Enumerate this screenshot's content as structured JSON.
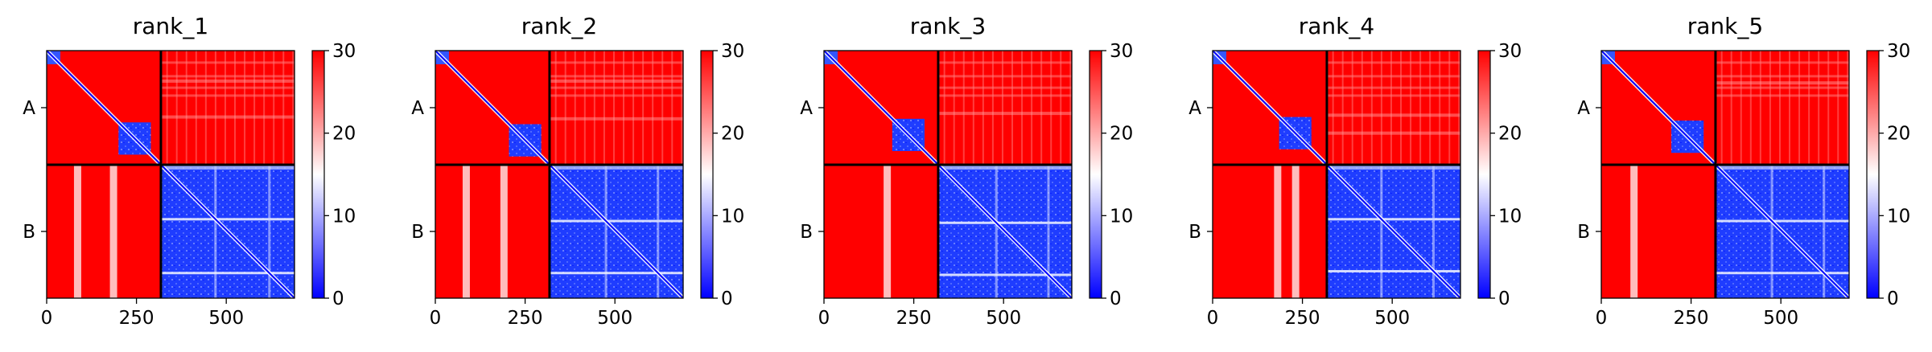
{
  "figure": {
    "colorbar_colors": {
      "low": "#0000ff",
      "mid": "#ffffff",
      "high": "#ff0000"
    }
  },
  "chart_data": [
    {
      "type": "heatmap",
      "title": "rank_1",
      "xlim": [
        0,
        690
      ],
      "x_ticks": [
        0,
        250,
        500
      ],
      "x_tick_labels": [
        "0",
        "250",
        "500"
      ],
      "y_chains": [
        "A",
        "B"
      ],
      "chain_boundary": 318,
      "colorbar": {
        "min": 0,
        "max": 30,
        "ticks": [
          0,
          10,
          20,
          30
        ]
      },
      "a_domain_end": 290,
      "b_light_columns": [
        85,
        185
      ],
      "b_light_rows": [
        470,
        620
      ]
    },
    {
      "type": "heatmap",
      "title": "rank_2",
      "xlim": [
        0,
        690
      ],
      "x_ticks": [
        0,
        250,
        500
      ],
      "x_tick_labels": [
        "0",
        "250",
        "500"
      ],
      "y_chains": [
        "A",
        "B"
      ],
      "chain_boundary": 318,
      "colorbar": {
        "min": 0,
        "max": 30,
        "ticks": [
          0,
          10,
          20,
          30
        ]
      },
      "a_domain_end": 295,
      "b_light_columns": [
        85,
        190
      ],
      "b_light_rows": [
        475,
        620
      ]
    },
    {
      "type": "heatmap",
      "title": "rank_3",
      "xlim": [
        0,
        690
      ],
      "x_ticks": [
        0,
        250,
        500
      ],
      "x_tick_labels": [
        "0",
        "250",
        "500"
      ],
      "y_chains": [
        "A",
        "B"
      ],
      "chain_boundary": 318,
      "colorbar": {
        "min": 0,
        "max": 30,
        "ticks": [
          0,
          10,
          20,
          30
        ]
      },
      "a_domain_end": 280,
      "b_light_columns": [
        175
      ],
      "b_light_rows": [
        480,
        625
      ]
    },
    {
      "type": "heatmap",
      "title": "rank_4",
      "xlim": [
        0,
        690
      ],
      "x_ticks": [
        0,
        250,
        500
      ],
      "x_tick_labels": [
        "0",
        "250",
        "500"
      ],
      "y_chains": [
        "A",
        "B"
      ],
      "chain_boundary": 318,
      "colorbar": {
        "min": 0,
        "max": 30,
        "ticks": [
          0,
          10,
          20,
          30
        ]
      },
      "a_domain_end": 275,
      "b_light_columns": [
        180,
        230
      ],
      "b_light_rows": [
        470,
        615
      ]
    },
    {
      "type": "heatmap",
      "title": "rank_5",
      "xlim": [
        0,
        690
      ],
      "x_ticks": [
        0,
        250,
        500
      ],
      "x_tick_labels": [
        "0",
        "250",
        "500"
      ],
      "y_chains": [
        "A",
        "B"
      ],
      "chain_boundary": 318,
      "colorbar": {
        "min": 0,
        "max": 30,
        "ticks": [
          0,
          10,
          20,
          30
        ]
      },
      "a_domain_end": 285,
      "b_light_columns": [
        90
      ],
      "b_light_rows": [
        475,
        620
      ]
    }
  ]
}
